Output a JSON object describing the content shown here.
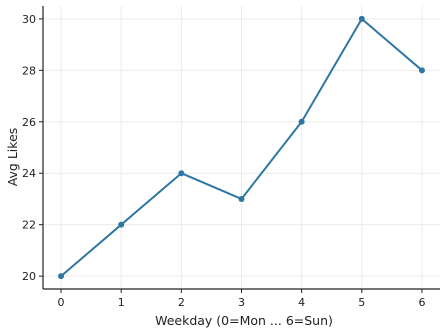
{
  "chart_data": {
    "type": "line",
    "title": "",
    "xlabel": "Weekday (0=Mon ... 6=Sun)",
    "ylabel": "Avg Likes",
    "x": [
      0,
      1,
      2,
      3,
      4,
      5,
      6
    ],
    "series": [
      {
        "values": [
          20,
          22,
          24,
          23,
          26,
          30,
          28
        ]
      }
    ],
    "xlim": [
      -0.3,
      6.3
    ],
    "ylim": [
      19.5,
      30.5
    ],
    "xticks": [
      "0",
      "1",
      "2",
      "3",
      "4",
      "5",
      "6"
    ],
    "yticks": [
      "20",
      "22",
      "24",
      "26",
      "28",
      "30"
    ],
    "grid": true,
    "legend": "none",
    "colors": {
      "line": "#2f77a3",
      "grid": "#ebebeb",
      "axis": "#222222"
    }
  }
}
